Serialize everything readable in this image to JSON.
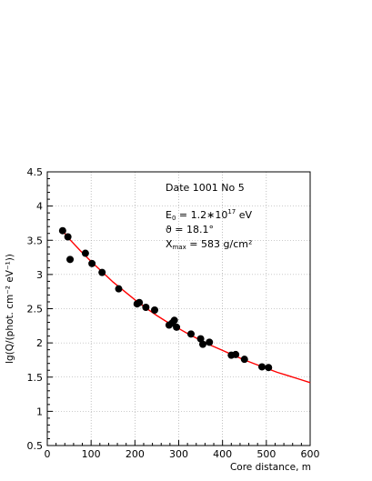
{
  "chart_data": {
    "type": "scatter",
    "xlabel": "Core distance, m",
    "ylabel": "lg(Q/(phot. cm⁻² eV⁻¹))",
    "xlim": [
      0,
      600
    ],
    "ylim": [
      0.5,
      4.5
    ],
    "x_ticks": [
      0,
      100,
      200,
      300,
      400,
      500,
      600
    ],
    "y_ticks": [
      0.5,
      1,
      1.5,
      2,
      2.5,
      3,
      3.5,
      4,
      4.5
    ],
    "grid": true,
    "annotations": {
      "title_line": "Date 1001 No 5",
      "energy": {
        "symbol": "E",
        "subscript": "0",
        "equals": " = 1.2∗10",
        "exponent": "17",
        "unit": " eV"
      },
      "theta": "ϑ = 18.1°",
      "xmax": {
        "symbol": "X",
        "subscript": "max",
        "rest": " = 583 g/cm²"
      }
    },
    "points": [
      {
        "x": 35,
        "y": 3.64
      },
      {
        "x": 47,
        "y": 3.55
      },
      {
        "x": 52,
        "y": 3.22
      },
      {
        "x": 87,
        "y": 3.31
      },
      {
        "x": 102,
        "y": 3.16
      },
      {
        "x": 125,
        "y": 3.03
      },
      {
        "x": 163,
        "y": 2.79
      },
      {
        "x": 205,
        "y": 2.57
      },
      {
        "x": 210,
        "y": 2.59
      },
      {
        "x": 225,
        "y": 2.52
      },
      {
        "x": 245,
        "y": 2.48
      },
      {
        "x": 278,
        "y": 2.26
      },
      {
        "x": 285,
        "y": 2.29
      },
      {
        "x": 290,
        "y": 2.33
      },
      {
        "x": 295,
        "y": 2.23
      },
      {
        "x": 328,
        "y": 2.13
      },
      {
        "x": 350,
        "y": 2.06
      },
      {
        "x": 355,
        "y": 1.98
      },
      {
        "x": 370,
        "y": 2.01
      },
      {
        "x": 420,
        "y": 1.82
      },
      {
        "x": 430,
        "y": 1.83
      },
      {
        "x": 450,
        "y": 1.76
      },
      {
        "x": 490,
        "y": 1.65
      },
      {
        "x": 505,
        "y": 1.64
      }
    ],
    "fit_curve": [
      {
        "x": 35,
        "y": 3.64
      },
      {
        "x": 50,
        "y": 3.52
      },
      {
        "x": 75,
        "y": 3.35
      },
      {
        "x": 100,
        "y": 3.19
      },
      {
        "x": 125,
        "y": 3.04
      },
      {
        "x": 150,
        "y": 2.89
      },
      {
        "x": 175,
        "y": 2.76
      },
      {
        "x": 200,
        "y": 2.63
      },
      {
        "x": 225,
        "y": 2.51
      },
      {
        "x": 250,
        "y": 2.4
      },
      {
        "x": 275,
        "y": 2.3
      },
      {
        "x": 300,
        "y": 2.21
      },
      {
        "x": 325,
        "y": 2.12
      },
      {
        "x": 350,
        "y": 2.04
      },
      {
        "x": 375,
        "y": 1.96
      },
      {
        "x": 400,
        "y": 1.89
      },
      {
        "x": 425,
        "y": 1.82
      },
      {
        "x": 450,
        "y": 1.75
      },
      {
        "x": 475,
        "y": 1.69
      },
      {
        "x": 500,
        "y": 1.63
      },
      {
        "x": 525,
        "y": 1.57
      },
      {
        "x": 550,
        "y": 1.52
      },
      {
        "x": 575,
        "y": 1.47
      },
      {
        "x": 600,
        "y": 1.42
      }
    ],
    "colors": {
      "points": "#000000",
      "fit": "#ff0000",
      "grid": "#999999",
      "axes": "#000000"
    }
  }
}
